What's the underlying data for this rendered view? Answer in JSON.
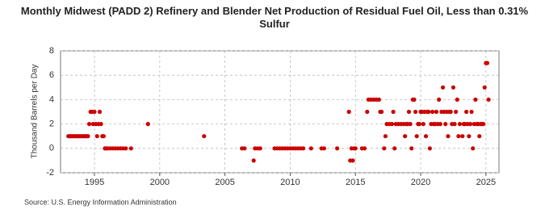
{
  "chart_data": {
    "type": "scatter",
    "title": "Monthly Midwest (PADD 2) Refinery and Blender Net Production of Residual Fuel Oil, Less than 0.31% Sulfur",
    "y_label": "Thousand Barrels per Day",
    "source": "Source: U.S. Energy Information Administration",
    "color": "#cc0000",
    "grid": true,
    "xlim": [
      1992.4,
      2026.0
    ],
    "ylim": [
      -2,
      8
    ],
    "xticks": [
      1995,
      2000,
      2005,
      2010,
      2015,
      2020,
      2025
    ],
    "yticks": [
      -2,
      0,
      2,
      4,
      6,
      8
    ],
    "x": [
      1993.0,
      1993.1,
      1993.2,
      1993.3,
      1993.4,
      1993.5,
      1993.6,
      1993.7,
      1993.8,
      1993.9,
      1994.0,
      1994.1,
      1994.2,
      1994.3,
      1994.4,
      1994.5,
      1994.6,
      1994.7,
      1994.8,
      1994.9,
      1995.0,
      1995.1,
      1995.2,
      1995.3,
      1995.4,
      1995.5,
      1995.6,
      1995.7,
      1995.8,
      1995.9,
      1996.0,
      1996.2,
      1996.4,
      1996.6,
      1996.8,
      1997.0,
      1997.2,
      1997.4,
      1997.8,
      1999.1,
      2003.4,
      2006.3,
      2006.5,
      2007.2,
      2007.3,
      2007.5,
      2007.7,
      2008.8,
      2009.0,
      2009.2,
      2009.4,
      2009.6,
      2009.8,
      2010.0,
      2010.2,
      2010.4,
      2010.6,
      2010.8,
      2011.0,
      2011.6,
      2012.4,
      2012.6,
      2013.6,
      2014.5,
      2014.6,
      2014.7,
      2014.8,
      2014.9,
      2015.0,
      2015.5,
      2015.7,
      2015.9,
      2016.0,
      2016.2,
      2016.4,
      2016.6,
      2016.8,
      2016.9,
      2017.0,
      2017.2,
      2017.3,
      2017.4,
      2017.6,
      2017.8,
      2017.9,
      2018.0,
      2018.1,
      2018.3,
      2018.5,
      2018.7,
      2018.8,
      2018.9,
      2019.0,
      2019.1,
      2019.2,
      2019.3,
      2019.4,
      2019.5,
      2019.6,
      2019.7,
      2019.8,
      2019.9,
      2020.0,
      2020.1,
      2020.2,
      2020.3,
      2020.4,
      2020.5,
      2020.6,
      2020.7,
      2020.8,
      2020.9,
      2021.0,
      2021.1,
      2021.2,
      2021.3,
      2021.4,
      2021.5,
      2021.6,
      2021.7,
      2021.8,
      2021.9,
      2022.0,
      2022.1,
      2022.2,
      2022.3,
      2022.4,
      2022.5,
      2022.6,
      2022.7,
      2022.8,
      2022.9,
      2023.0,
      2023.2,
      2023.3,
      2023.4,
      2023.5,
      2023.6,
      2023.7,
      2023.8,
      2023.9,
      2024.0,
      2024.1,
      2024.2,
      2024.3,
      2024.4,
      2024.5,
      2024.6,
      2024.7,
      2024.8,
      2024.9,
      2025.0,
      2025.1,
      2025.2
    ],
    "values": [
      1,
      1,
      1,
      1,
      1,
      1,
      1,
      1,
      1,
      1,
      1,
      1,
      1,
      1,
      1,
      1,
      2,
      3,
      3,
      2,
      3,
      2,
      1,
      2,
      3,
      2,
      1,
      1,
      0,
      0,
      0,
      0,
      0,
      0,
      0,
      0,
      0,
      0,
      0,
      2,
      1,
      0,
      0,
      -1,
      0,
      0,
      0,
      0,
      0,
      0,
      0,
      0,
      0,
      0,
      0,
      0,
      0,
      0,
      0,
      0,
      0,
      0,
      0,
      3,
      -1,
      0,
      -1,
      0,
      0,
      0,
      0,
      3,
      4,
      4,
      4,
      4,
      4,
      3,
      3,
      0,
      1,
      2,
      2,
      2,
      3,
      0,
      2,
      2,
      2,
      2,
      1,
      2,
      2,
      3,
      2,
      0,
      4,
      4,
      3,
      1,
      2,
      2,
      3,
      3,
      2,
      3,
      1,
      3,
      3,
      0,
      2,
      3,
      2,
      2,
      3,
      2,
      4,
      2,
      3,
      5,
      3,
      2,
      3,
      1,
      3,
      3,
      2,
      5,
      2,
      3,
      4,
      1,
      2,
      1,
      2,
      2,
      3,
      2,
      1,
      2,
      3,
      0,
      2,
      4,
      2,
      2,
      1,
      2,
      2,
      2,
      5,
      7,
      7,
      4
    ]
  }
}
